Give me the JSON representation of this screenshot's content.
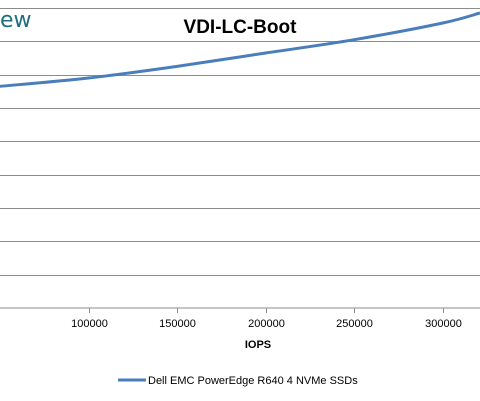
{
  "brand": {
    "logo_text": "ew"
  },
  "chart_data": {
    "type": "line",
    "title": "VDI-LC-Boot",
    "xlabel": "IOPS",
    "ylabel": "",
    "x_ticks": [
      100000,
      150000,
      200000,
      250000,
      300000
    ],
    "x_tick_labels": [
      "100000",
      "150000",
      "200000",
      "250000",
      "300000"
    ],
    "xlim": [
      50000,
      321000
    ],
    "ylim": [
      0,
      9
    ],
    "grid": true,
    "legend_position": "bottom",
    "series": [
      {
        "name": "Dell EMC PowerEdge R640 4 NVMe SSDs",
        "color": "#4a7ebb",
        "x": [
          50000,
          100000,
          150000,
          200000,
          250000,
          300000,
          321000
        ],
        "y": [
          6.65,
          6.9,
          7.25,
          7.65,
          8.05,
          8.55,
          8.85
        ]
      }
    ]
  }
}
